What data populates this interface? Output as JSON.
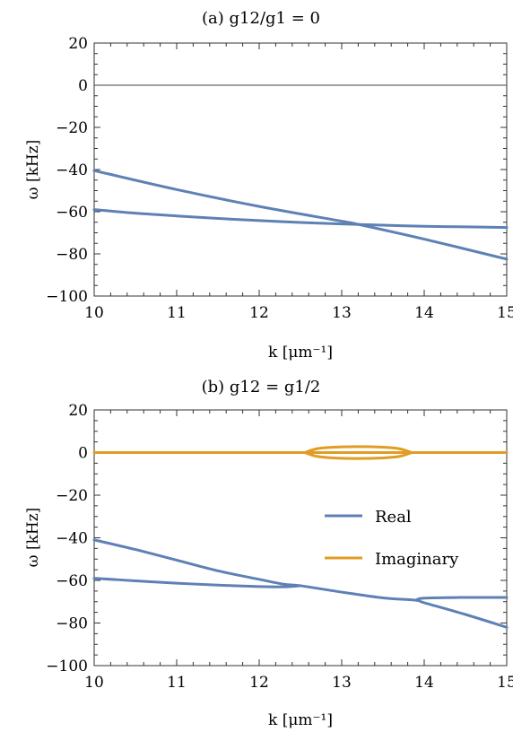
{
  "chart_data": [
    {
      "type": "line",
      "title": "(a) g12/g1 = 0",
      "xlabel": "k [μm⁻¹]",
      "ylabel": "ω [kHz]",
      "xlim": [
        10,
        15
      ],
      "ylim": [
        -100,
        20
      ],
      "x_ticks": [
        "10",
        "11",
        "12",
        "13",
        "14",
        "15"
      ],
      "y_ticks": [
        "20",
        "0",
        "−20",
        "−40",
        "−60",
        "−80",
        "−100"
      ],
      "zero_line": true,
      "legend": null,
      "series": [
        {
          "color": "#5e81b5",
          "x": [
            10,
            11,
            12,
            13,
            13.2,
            14,
            15
          ],
          "y": [
            -40.5,
            -49.5,
            -57.5,
            -64.5,
            -66,
            -73,
            -82.5
          ]
        },
        {
          "color": "#5e81b5",
          "x": [
            10,
            10.5,
            11,
            11.5,
            12,
            12.5,
            13,
            13.5,
            14,
            14.5,
            15
          ],
          "y": [
            -59,
            -60.7,
            -62,
            -63.2,
            -64.2,
            -65.1,
            -65.8,
            -66.4,
            -66.9,
            -67.2,
            -67.5
          ]
        }
      ]
    },
    {
      "type": "line",
      "title": "(b) g12 = g1/2",
      "xlabel": "k [μm⁻¹]",
      "ylabel": "ω [kHz]",
      "xlim": [
        10,
        15
      ],
      "ylim": [
        -100,
        20
      ],
      "x_ticks": [
        "10",
        "11",
        "12",
        "13",
        "14",
        "15"
      ],
      "y_ticks": [
        "20",
        "0",
        "−20",
        "−40",
        "−60",
        "−80",
        "−100"
      ],
      "zero_line": false,
      "legend": {
        "position": "right",
        "entries": [
          {
            "label": "Real",
            "color": "#5e81b5"
          },
          {
            "label": "Imaginary",
            "color": "#e19c24"
          }
        ]
      },
      "series": [
        {
          "color": "#5e81b5",
          "x": [
            10,
            10.5,
            11,
            11.5,
            12,
            12.3,
            12.5,
            13,
            13.5,
            13.9,
            14,
            14.5,
            15
          ],
          "y": [
            -41,
            -45.5,
            -50.5,
            -55.5,
            -59.5,
            -61.8,
            -62.5,
            -65.5,
            -68.2,
            -69.3,
            -70.5,
            -76,
            -82
          ]
        },
        {
          "color": "#5e81b5",
          "x": [
            10,
            10.5,
            11,
            11.5,
            12,
            12.3,
            12.5
          ],
          "y": [
            -59,
            -60.2,
            -61.3,
            -62.2,
            -62.9,
            -63,
            -62.5
          ]
        },
        {
          "color": "#5e81b5",
          "x": [
            13.9,
            14,
            14.5,
            15
          ],
          "y": [
            -69.3,
            -68.3,
            -68,
            -68
          ]
        },
        {
          "color": "#e19c24",
          "x": [
            10,
            15
          ],
          "y": [
            0,
            0
          ]
        },
        {
          "color": "#e19c24",
          "x": [
            12.55,
            12.7,
            12.9,
            13.2,
            13.5,
            13.7,
            13.85
          ],
          "y": [
            0,
            1.8,
            2.5,
            2.8,
            2.5,
            1.8,
            0
          ]
        },
        {
          "color": "#e19c24",
          "x": [
            12.55,
            12.7,
            12.9,
            13.2,
            13.5,
            13.7,
            13.85
          ],
          "y": [
            0,
            -1.8,
            -2.5,
            -2.8,
            -2.5,
            -1.8,
            0
          ]
        }
      ]
    }
  ]
}
